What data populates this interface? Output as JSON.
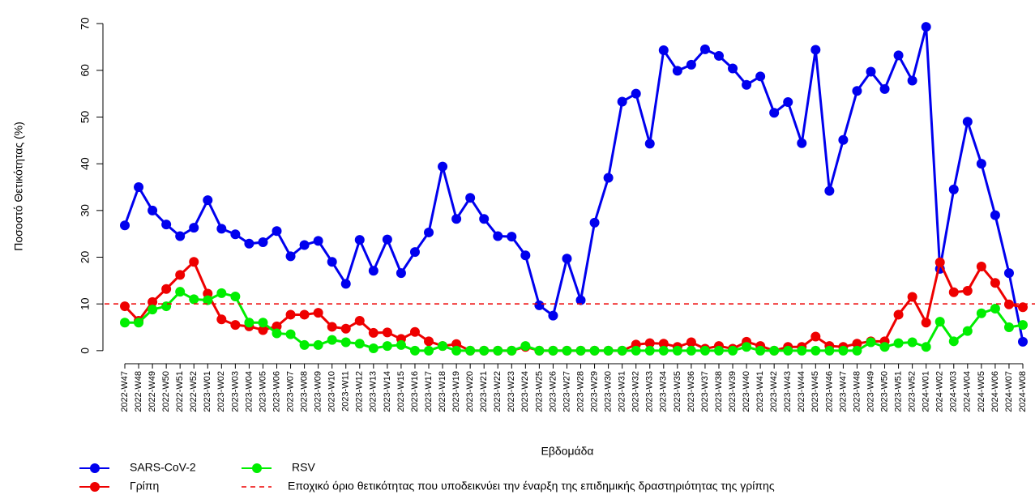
{
  "chart_data": {
    "type": "line",
    "x_label": "Εβδομάδα",
    "y_label": "Ποσοστό Θετικότητας (%)",
    "categories": [
      "2022-W47",
      "2022-W48",
      "2022-W49",
      "2022-W50",
      "2022-W51",
      "2022-W52",
      "2023-W01",
      "2023-W02",
      "2023-W03",
      "2023-W04",
      "2023-W05",
      "2023-W06",
      "2023-W07",
      "2023-W08",
      "2023-W09",
      "2023-W10",
      "2023-W11",
      "2023-W12",
      "2023-W13",
      "2023-W14",
      "2023-W15",
      "2023-W16",
      "2023-W17",
      "2023-W18",
      "2023-W19",
      "2023-W20",
      "2023-W21",
      "2023-W22",
      "2023-W23",
      "2023-W24",
      "2023-W25",
      "2023-W26",
      "2023-W27",
      "2023-W28",
      "2023-W29",
      "2023-W30",
      "2023-W31",
      "2023-W32",
      "2023-W33",
      "2023-W34",
      "2023-W35",
      "2023-W36",
      "2023-W37",
      "2023-W38",
      "2023-W39",
      "2023-W40",
      "2023-W41",
      "2023-W42",
      "2023-W43",
      "2023-W44",
      "2023-W45",
      "2023-W46",
      "2023-W47",
      "2023-W48",
      "2023-W49",
      "2023-W50",
      "2023-W51",
      "2023-W52",
      "2024-W01",
      "2024-W02",
      "2024-W03",
      "2024-W04",
      "2024-W05",
      "2024-W06",
      "2024-W07",
      "2024-W08"
    ],
    "series": [
      {
        "name": "SARS-CoV-2",
        "color": "#0000ee",
        "values": [
          26.8,
          35,
          30,
          27,
          24.5,
          26.3,
          32.2,
          26.1,
          24.9,
          22.9,
          23.2,
          25.6,
          20.2,
          22.6,
          23.5,
          19,
          14.3,
          23.7,
          17.1,
          23.8,
          16.6,
          21.1,
          25.3,
          39.4,
          28.2,
          32.7,
          28.2,
          24.5,
          24.4,
          20.4,
          9.7,
          7.5,
          19.7,
          10.8,
          27.4,
          37,
          53.3,
          55,
          44.3,
          64.3,
          59.9,
          61.2,
          64.5,
          63.1,
          60.4,
          56.9,
          58.7,
          50.9,
          53.2,
          44.4,
          64.4,
          34.2,
          45.1,
          55.6,
          59.7,
          56,
          63.2,
          57.8,
          69.3,
          17.5,
          34.5,
          49,
          40,
          29,
          16.6,
          1.9
        ]
      },
      {
        "name": "Γρίπη",
        "color": "#ee0000",
        "values": [
          9.5,
          6.4,
          10.4,
          13.2,
          16.2,
          19,
          12.2,
          6.7,
          5.5,
          5.2,
          4.4,
          5.2,
          7.7,
          7.7,
          8.1,
          5.1,
          4.7,
          6.4,
          3.8,
          3.9,
          2.5,
          4,
          2,
          1,
          1.4,
          0,
          0,
          0,
          0,
          0.8,
          0,
          0,
          0,
          0,
          0,
          0,
          0,
          1.3,
          1.6,
          1.5,
          0.8,
          1.8,
          0.4,
          1,
          0.4,
          1.9,
          1,
          0,
          0.8,
          0.8,
          3,
          1,
          0.8,
          1.5,
          2,
          2,
          7.7,
          11.5,
          6,
          18.9,
          12.5,
          12.8,
          18,
          14.5,
          9.9,
          9.3
        ]
      },
      {
        "name": "RSV",
        "color": "#00ee00",
        "values": [
          6,
          6,
          8.8,
          9.5,
          12.6,
          11,
          10.8,
          12.3,
          11.6,
          6,
          6,
          3.7,
          3.5,
          1.2,
          1.2,
          2.3,
          1.8,
          1.5,
          0.5,
          1,
          1.2,
          0,
          0,
          1,
          0,
          0,
          0,
          0,
          0,
          1,
          0,
          0,
          0,
          0,
          0,
          0,
          0,
          0,
          0,
          0,
          0,
          0,
          0,
          0,
          0,
          0.8,
          0,
          0,
          0,
          0,
          0,
          0,
          0,
          0,
          1.8,
          0.8,
          1.6,
          1.8,
          0.8,
          6.2,
          2,
          4.2,
          8,
          9,
          5,
          5.5
        ]
      }
    ],
    "threshold": {
      "name": "Εποχικό όριο θετικότητας που υποδεικνύει την έναρξη της επιδημικής δραστηριότητας της γρίπης",
      "value": 10,
      "color": "#ee0000"
    },
    "ylim": [
      -2.8,
      72.8
    ],
    "yticks": [
      0,
      10,
      20,
      30,
      40,
      50,
      60,
      70
    ],
    "grid": false
  }
}
